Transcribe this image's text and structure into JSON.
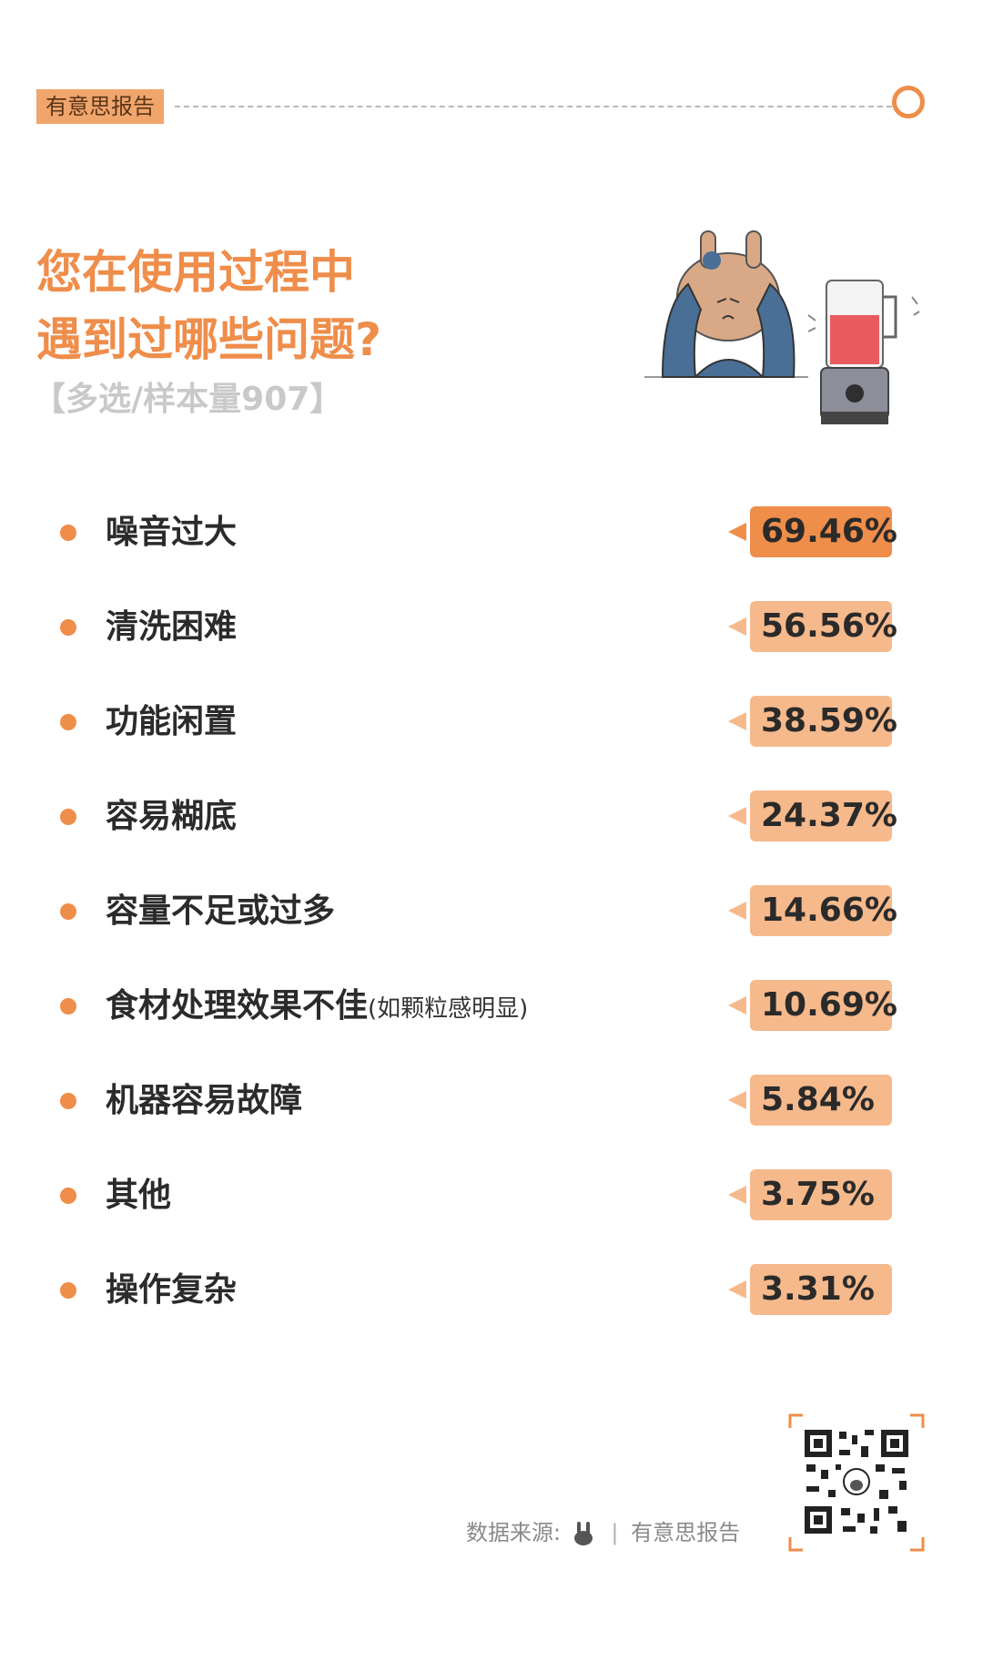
{
  "header": {
    "brand_tag": "有意思报告",
    "accent": "#ef8d4a"
  },
  "title_lines": [
    "您在使用过程中",
    "遇到过哪些问题?"
  ],
  "subtitle": "【多选/样本量907】",
  "illustration": {
    "icon": "rabbit-covering-ears-near-blender-icon"
  },
  "chart_data": {
    "type": "bar",
    "categories": [
      "噪音过大",
      "清洗困难",
      "功能闲置",
      "容易糊底",
      "容量不足或过多",
      "食材处理效果不佳",
      "机器容易故障",
      "其他",
      "操作复杂"
    ],
    "category_notes": [
      "",
      "",
      "",
      "",
      "",
      "(如颗粒感明显)",
      "",
      "",
      ""
    ],
    "values": [
      69.46,
      56.56,
      38.59,
      24.37,
      14.66,
      10.69,
      5.84,
      3.75,
      3.31
    ],
    "value_labels": [
      "69.46%",
      "56.56%",
      "38.59%",
      "24.37%",
      "14.66%",
      "10.69%",
      "5.84%",
      "3.75%",
      "3.31%"
    ],
    "unit": "%",
    "highlight_color": "#ef8d4a",
    "badge_color": "#f6b98c"
  },
  "footer": {
    "source_label": "数据来源:",
    "brand": "有意思报告",
    "separator": "|",
    "qr_icon": "qr-code-icon"
  }
}
